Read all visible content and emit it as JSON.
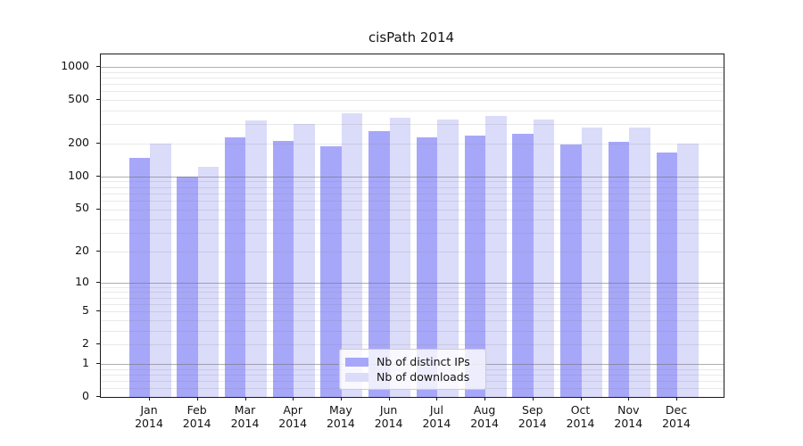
{
  "title": "cisPath 2014",
  "legend": {
    "items": [
      {
        "label": "Nb of distinct IPs",
        "color": "#a7a7f9"
      },
      {
        "label": "Nb of downloads",
        "color": "#dbdbfa"
      }
    ]
  },
  "axis": {
    "y_tick_labels": [
      "0",
      "1",
      "2",
      "5",
      "10",
      "20",
      "50",
      "100",
      "200",
      "500",
      "1000"
    ],
    "x_tick_labels": [
      "Jan\n2014",
      "Feb\n2014",
      "Mar\n2014",
      "Apr\n2014",
      "May\n2014",
      "Jun\n2014",
      "Jul\n2014",
      "Aug\n2014",
      "Sep\n2014",
      "Oct\n2014",
      "Nov\n2014",
      "Dec\n2014"
    ]
  },
  "chart_data": {
    "type": "bar",
    "title": "cisPath 2014",
    "categories": [
      "Jan 2014",
      "Feb 2014",
      "Mar 2014",
      "Apr 2014",
      "May 2014",
      "Jun 2014",
      "Jul 2014",
      "Aug 2014",
      "Sep 2014",
      "Oct 2014",
      "Nov 2014",
      "Dec 2014"
    ],
    "series": [
      {
        "name": "Nb of distinct IPs",
        "color": "#a7a7f9",
        "values": [
          148,
          100,
          227,
          213,
          189,
          261,
          230,
          238,
          245,
          198,
          209,
          166
        ]
      },
      {
        "name": "Nb of downloads",
        "color": "#dbdbfa",
        "values": [
          202,
          123,
          326,
          300,
          380,
          346,
          334,
          356,
          330,
          279,
          282,
          202
        ]
      }
    ],
    "xlabel": "",
    "ylabel": "",
    "y_scale": "log1p",
    "y_ticks": [
      0,
      1,
      2,
      5,
      10,
      20,
      50,
      100,
      200,
      500,
      1000
    ],
    "ylim": [
      0,
      1300
    ],
    "grid": true,
    "legend_position": "lower center"
  }
}
